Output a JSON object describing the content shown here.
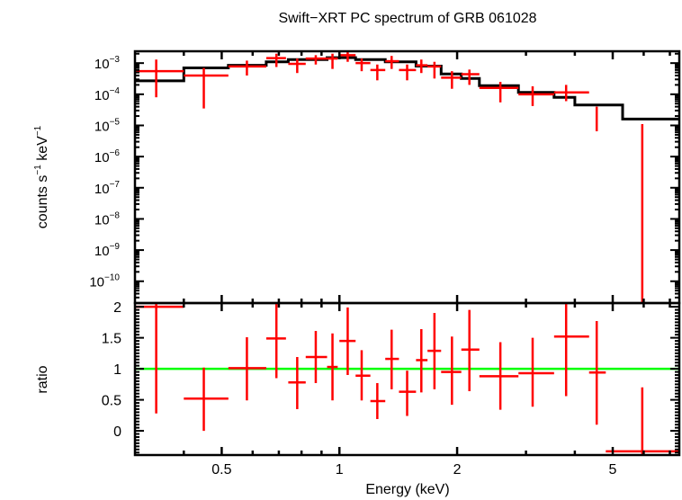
{
  "chart_data": {
    "type": "line",
    "title": "Swift−XRT PC spectrum of GRB 061028",
    "xlabel": "Energy (keV)",
    "xscale": "log",
    "xlim": [
      0.3,
      7.4
    ],
    "xticks": [
      {
        "value": 0.5,
        "label": "0.5"
      },
      {
        "value": 1,
        "label": "1"
      },
      {
        "value": 2,
        "label": "2"
      },
      {
        "value": 5,
        "label": "5"
      }
    ],
    "colors": {
      "data": "#ff0000",
      "model": "#000000",
      "unity": "#00ff00",
      "axis": "#000000"
    },
    "panels": [
      {
        "name": "spectrum",
        "ylabel_main": "counts s",
        "ylabel_sup1": "−1",
        "ylabel_mid": " keV",
        "ylabel_sup2": "−1",
        "yscale": "log",
        "ylim_exp": [
          -10.7,
          -2.62
        ],
        "yticks": [
          {
            "exp": -3,
            "base": "10",
            "sup": "−3"
          },
          {
            "exp": -4,
            "base": "10",
            "sup": "−4"
          },
          {
            "exp": -5,
            "base": "10",
            "sup": "−5"
          },
          {
            "exp": -6,
            "base": "10",
            "sup": "−6"
          },
          {
            "exp": -7,
            "base": "10",
            "sup": "−7"
          },
          {
            "exp": -8,
            "base": "10",
            "sup": "−8"
          },
          {
            "exp": -9,
            "base": "10",
            "sup": "−9"
          },
          {
            "exp": -10,
            "base": "10",
            "sup": "−10"
          }
        ],
        "series": [
          {
            "name": "data",
            "points": [
              {
                "x": 0.34,
                "xlo": 0.3,
                "xhi": 0.4,
                "y": 0.00055,
                "ylo": 8e-05,
                "yhi": 0.0013
              },
              {
                "x": 0.45,
                "xlo": 0.4,
                "xhi": 0.52,
                "y": 0.0004,
                "ylo": 3.5e-05,
                "yhi": 0.0007
              },
              {
                "x": 0.58,
                "xlo": 0.52,
                "xhi": 0.65,
                "y": 0.00078,
                "ylo": 0.0004,
                "yhi": 0.0012
              },
              {
                "x": 0.69,
                "xlo": 0.65,
                "xhi": 0.73,
                "y": 0.00145,
                "ylo": 0.00075,
                "yhi": 0.002
              },
              {
                "x": 0.78,
                "xlo": 0.74,
                "xhi": 0.82,
                "y": 0.00095,
                "ylo": 0.00048,
                "yhi": 0.0014
              },
              {
                "x": 0.87,
                "xlo": 0.82,
                "xhi": 0.93,
                "y": 0.0014,
                "ylo": 0.0009,
                "yhi": 0.0018
              },
              {
                "x": 0.96,
                "xlo": 0.93,
                "xhi": 0.99,
                "y": 0.0014,
                "ylo": 0.00065,
                "yhi": 0.002
              },
              {
                "x": 1.05,
                "xlo": 1.0,
                "xhi": 1.1,
                "y": 0.0018,
                "ylo": 0.0011,
                "yhi": 0.0025
              },
              {
                "x": 1.14,
                "xlo": 1.1,
                "xhi": 1.2,
                "y": 0.001,
                "ylo": 0.00055,
                "yhi": 0.0014
              },
              {
                "x": 1.25,
                "xlo": 1.2,
                "xhi": 1.31,
                "y": 0.0006,
                "ylo": 0.00028,
                "yhi": 0.0009
              },
              {
                "x": 1.36,
                "xlo": 1.31,
                "xhi": 1.42,
                "y": 0.00115,
                "ylo": 0.00065,
                "yhi": 0.0017
              },
              {
                "x": 1.49,
                "xlo": 1.42,
                "xhi": 1.57,
                "y": 0.0006,
                "ylo": 0.00028,
                "yhi": 0.0009
              },
              {
                "x": 1.62,
                "xlo": 1.57,
                "xhi": 1.68,
                "y": 0.00085,
                "ylo": 0.00048,
                "yhi": 0.0013
              },
              {
                "x": 1.75,
                "xlo": 1.68,
                "xhi": 1.82,
                "y": 0.00078,
                "ylo": 0.00032,
                "yhi": 0.0011
              },
              {
                "x": 1.94,
                "xlo": 1.82,
                "xhi": 2.05,
                "y": 0.00034,
                "ylo": 0.00015,
                "yhi": 0.00055
              },
              {
                "x": 2.15,
                "xlo": 2.05,
                "xhi": 2.28,
                "y": 0.00044,
                "ylo": 0.0002,
                "yhi": 0.00062
              },
              {
                "x": 2.58,
                "xlo": 2.28,
                "xhi": 2.87,
                "y": 0.00016,
                "ylo": 5.5e-05,
                "yhi": 0.00025
              },
              {
                "x": 3.12,
                "xlo": 2.87,
                "xhi": 3.54,
                "y": 0.0001,
                "ylo": 4.2e-05,
                "yhi": 0.00018
              },
              {
                "x": 3.8,
                "xlo": 3.54,
                "xhi": 4.35,
                "y": 0.000115,
                "ylo": 6e-05,
                "yhi": 0.0002
              },
              {
                "x": 4.55,
                "xlo": 4.35,
                "xhi": 4.8,
                "y": null,
                "ylo": 6.5e-06,
                "yhi": 4e-05
              },
              {
                "x": 5.95,
                "xlo": 4.8,
                "xhi": 7.4,
                "y": null,
                "ylo": 1e-11,
                "yhi": 1.1e-05
              }
            ]
          },
          {
            "name": "model",
            "steps": [
              {
                "xlo": 0.3,
                "xhi": 0.4,
                "y": 0.00027
              },
              {
                "xlo": 0.4,
                "xhi": 0.52,
                "y": 0.0007
              },
              {
                "xlo": 0.52,
                "xhi": 0.65,
                "y": 0.00085
              },
              {
                "xlo": 0.65,
                "xhi": 0.74,
                "y": 0.0011
              },
              {
                "xlo": 0.74,
                "xhi": 0.93,
                "y": 0.0013
              },
              {
                "xlo": 0.93,
                "xhi": 1.1,
                "y": 0.0015
              },
              {
                "xlo": 1.1,
                "xhi": 1.31,
                "y": 0.0013
              },
              {
                "xlo": 1.31,
                "xhi": 1.57,
                "y": 0.0011
              },
              {
                "xlo": 1.57,
                "xhi": 1.82,
                "y": 0.0008
              },
              {
                "xlo": 1.82,
                "xhi": 2.05,
                "y": 0.00045
              },
              {
                "xlo": 2.05,
                "xhi": 2.28,
                "y": 0.00032
              },
              {
                "xlo": 2.28,
                "xhi": 2.87,
                "y": 0.00019
              },
              {
                "xlo": 2.87,
                "xhi": 3.54,
                "y": 0.000115
              },
              {
                "xlo": 3.54,
                "xhi": 4.0,
                "y": 8e-05
              },
              {
                "xlo": 4.0,
                "xhi": 5.3,
                "y": 4.5e-05
              },
              {
                "xlo": 5.3,
                "xhi": 7.4,
                "y": 1.6e-05
              }
            ]
          }
        ]
      },
      {
        "name": "ratio",
        "ylabel": "ratio",
        "yscale": "linear",
        "ylim": [
          -0.39,
          2.06
        ],
        "yticks": [
          {
            "value": 2,
            "label": "2"
          },
          {
            "value": 1.5,
            "label": "1.5"
          },
          {
            "value": 1,
            "label": "1"
          },
          {
            "value": 0.5,
            "label": "0.5"
          },
          {
            "value": 0,
            "label": "0"
          }
        ],
        "unity": 1.0,
        "points": [
          {
            "xlo": 0.3,
            "xhi": 0.4,
            "x": 0.34,
            "y": 2.0,
            "ylo": 0.28,
            "yhi": 2.06
          },
          {
            "xlo": 0.4,
            "xhi": 0.52,
            "x": 0.45,
            "y": 0.52,
            "ylo": 0.0,
            "yhi": 1.02
          },
          {
            "xlo": 0.52,
            "xhi": 0.65,
            "x": 0.58,
            "y": 1.01,
            "ylo": 0.49,
            "yhi": 1.51
          },
          {
            "xlo": 0.65,
            "xhi": 0.73,
            "x": 0.69,
            "y": 1.49,
            "ylo": 0.85,
            "yhi": 2.06
          },
          {
            "xlo": 0.74,
            "xhi": 0.82,
            "x": 0.78,
            "y": 0.78,
            "ylo": 0.35,
            "yhi": 1.19
          },
          {
            "xlo": 0.82,
            "xhi": 0.93,
            "x": 0.87,
            "y": 1.19,
            "ylo": 0.77,
            "yhi": 1.61
          },
          {
            "xlo": 0.93,
            "xhi": 0.99,
            "x": 0.96,
            "y": 1.03,
            "ylo": 0.49,
            "yhi": 1.57
          },
          {
            "xlo": 1.0,
            "xhi": 1.1,
            "x": 1.05,
            "y": 1.45,
            "ylo": 0.9,
            "yhi": 1.99
          },
          {
            "xlo": 1.1,
            "xhi": 1.2,
            "x": 1.14,
            "y": 0.89,
            "ylo": 0.49,
            "yhi": 1.3
          },
          {
            "xlo": 1.2,
            "xhi": 1.31,
            "x": 1.25,
            "y": 0.48,
            "ylo": 0.19,
            "yhi": 0.77
          },
          {
            "xlo": 1.31,
            "xhi": 1.42,
            "x": 1.36,
            "y": 1.16,
            "ylo": 0.67,
            "yhi": 1.63
          },
          {
            "xlo": 1.42,
            "xhi": 1.57,
            "x": 1.49,
            "y": 0.63,
            "ylo": 0.24,
            "yhi": 0.97
          },
          {
            "xlo": 1.57,
            "xhi": 1.68,
            "x": 1.62,
            "y": 1.14,
            "ylo": 0.62,
            "yhi": 1.64
          },
          {
            "xlo": 1.68,
            "xhi": 1.82,
            "x": 1.75,
            "y": 1.29,
            "ylo": 0.67,
            "yhi": 1.9
          },
          {
            "xlo": 1.82,
            "xhi": 2.05,
            "x": 1.94,
            "y": 0.95,
            "ylo": 0.42,
            "yhi": 1.52
          },
          {
            "xlo": 2.05,
            "xhi": 2.28,
            "x": 2.15,
            "y": 1.31,
            "ylo": 0.64,
            "yhi": 1.95
          },
          {
            "xlo": 2.28,
            "xhi": 2.87,
            "x": 2.58,
            "y": 0.88,
            "ylo": 0.34,
            "yhi": 1.43
          },
          {
            "xlo": 2.87,
            "xhi": 3.54,
            "x": 3.12,
            "y": 0.93,
            "ylo": 0.39,
            "yhi": 1.5
          },
          {
            "xlo": 3.54,
            "xhi": 4.35,
            "x": 3.8,
            "y": 1.52,
            "ylo": 0.56,
            "yhi": 2.06
          },
          {
            "xlo": 4.35,
            "xhi": 4.8,
            "x": 4.55,
            "y": 0.94,
            "ylo": 0.1,
            "yhi": 1.77
          },
          {
            "xlo": 4.8,
            "xhi": 7.4,
            "x": 5.95,
            "y": -0.33,
            "ylo": -0.39,
            "yhi": 0.7
          }
        ]
      }
    ]
  }
}
